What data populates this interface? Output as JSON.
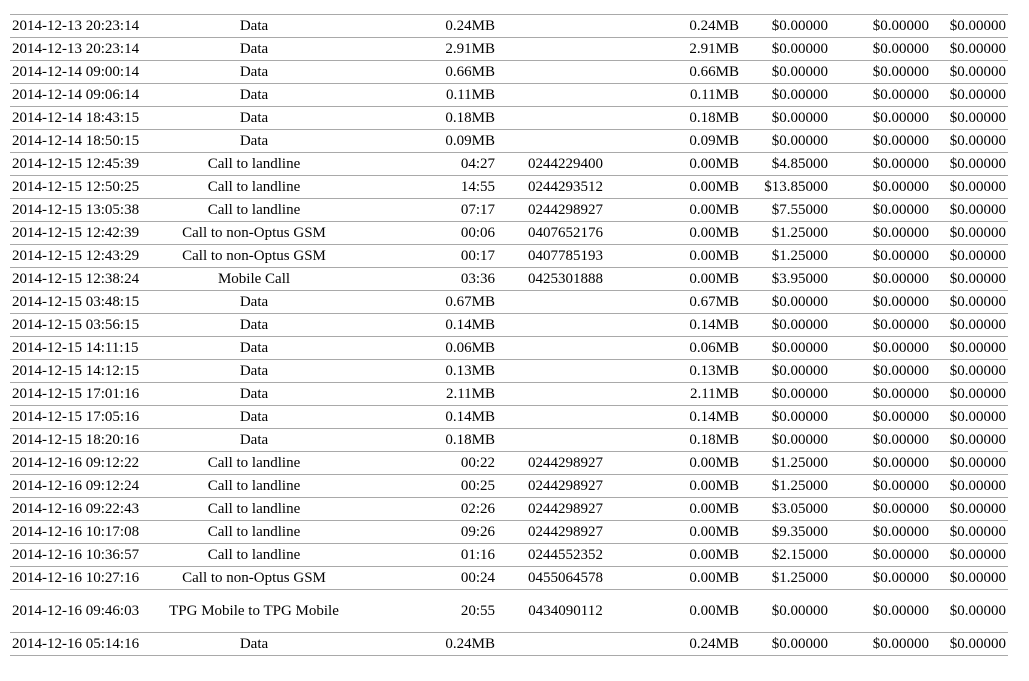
{
  "rows": [
    {
      "date": "2014-12-13 20:23:14",
      "type": "Data",
      "amount": "0.24MB",
      "number": "",
      "usage": "0.24MB",
      "cost": "$0.00000",
      "included": "$0.00000",
      "extra": "$0.00000"
    },
    {
      "date": "2014-12-13 20:23:14",
      "type": "Data",
      "amount": "2.91MB",
      "number": "",
      "usage": "2.91MB",
      "cost": "$0.00000",
      "included": "$0.00000",
      "extra": "$0.00000"
    },
    {
      "date": "2014-12-14 09:00:14",
      "type": "Data",
      "amount": "0.66MB",
      "number": "",
      "usage": "0.66MB",
      "cost": "$0.00000",
      "included": "$0.00000",
      "extra": "$0.00000"
    },
    {
      "date": "2014-12-14 09:06:14",
      "type": "Data",
      "amount": "0.11MB",
      "number": "",
      "usage": "0.11MB",
      "cost": "$0.00000",
      "included": "$0.00000",
      "extra": "$0.00000"
    },
    {
      "date": "2014-12-14 18:43:15",
      "type": "Data",
      "amount": "0.18MB",
      "number": "",
      "usage": "0.18MB",
      "cost": "$0.00000",
      "included": "$0.00000",
      "extra": "$0.00000"
    },
    {
      "date": "2014-12-14 18:50:15",
      "type": "Data",
      "amount": "0.09MB",
      "number": "",
      "usage": "0.09MB",
      "cost": "$0.00000",
      "included": "$0.00000",
      "extra": "$0.00000"
    },
    {
      "date": "2014-12-15 12:45:39",
      "type": "Call to landline",
      "amount": "04:27",
      "number": "0244229400",
      "usage": "0.00MB",
      "cost": "$4.85000",
      "included": "$0.00000",
      "extra": "$0.00000"
    },
    {
      "date": "2014-12-15 12:50:25",
      "type": "Call to landline",
      "amount": "14:55",
      "number": "0244293512",
      "usage": "0.00MB",
      "cost": "$13.85000",
      "included": "$0.00000",
      "extra": "$0.00000"
    },
    {
      "date": "2014-12-15 13:05:38",
      "type": "Call to landline",
      "amount": "07:17",
      "number": "0244298927",
      "usage": "0.00MB",
      "cost": "$7.55000",
      "included": "$0.00000",
      "extra": "$0.00000"
    },
    {
      "date": "2014-12-15 12:42:39",
      "type": "Call to non-Optus GSM",
      "amount": "00:06",
      "number": "0407652176",
      "usage": "0.00MB",
      "cost": "$1.25000",
      "included": "$0.00000",
      "extra": "$0.00000"
    },
    {
      "date": "2014-12-15 12:43:29",
      "type": "Call to non-Optus GSM",
      "amount": "00:17",
      "number": "0407785193",
      "usage": "0.00MB",
      "cost": "$1.25000",
      "included": "$0.00000",
      "extra": "$0.00000"
    },
    {
      "date": "2014-12-15 12:38:24",
      "type": "Mobile Call",
      "amount": "03:36",
      "number": "0425301888",
      "usage": "0.00MB",
      "cost": "$3.95000",
      "included": "$0.00000",
      "extra": "$0.00000"
    },
    {
      "date": "2014-12-15 03:48:15",
      "type": "Data",
      "amount": "0.67MB",
      "number": "",
      "usage": "0.67MB",
      "cost": "$0.00000",
      "included": "$0.00000",
      "extra": "$0.00000"
    },
    {
      "date": "2014-12-15 03:56:15",
      "type": "Data",
      "amount": "0.14MB",
      "number": "",
      "usage": "0.14MB",
      "cost": "$0.00000",
      "included": "$0.00000",
      "extra": "$0.00000"
    },
    {
      "date": "2014-12-15 14:11:15",
      "type": "Data",
      "amount": "0.06MB",
      "number": "",
      "usage": "0.06MB",
      "cost": "$0.00000",
      "included": "$0.00000",
      "extra": "$0.00000"
    },
    {
      "date": "2014-12-15 14:12:15",
      "type": "Data",
      "amount": "0.13MB",
      "number": "",
      "usage": "0.13MB",
      "cost": "$0.00000",
      "included": "$0.00000",
      "extra": "$0.00000"
    },
    {
      "date": "2014-12-15 17:01:16",
      "type": "Data",
      "amount": "2.11MB",
      "number": "",
      "usage": "2.11MB",
      "cost": "$0.00000",
      "included": "$0.00000",
      "extra": "$0.00000"
    },
    {
      "date": "2014-12-15 17:05:16",
      "type": "Data",
      "amount": "0.14MB",
      "number": "",
      "usage": "0.14MB",
      "cost": "$0.00000",
      "included": "$0.00000",
      "extra": "$0.00000"
    },
    {
      "date": "2014-12-15 18:20:16",
      "type": "Data",
      "amount": "0.18MB",
      "number": "",
      "usage": "0.18MB",
      "cost": "$0.00000",
      "included": "$0.00000",
      "extra": "$0.00000"
    },
    {
      "date": "2014-12-16 09:12:22",
      "type": "Call to landline",
      "amount": "00:22",
      "number": "0244298927",
      "usage": "0.00MB",
      "cost": "$1.25000",
      "included": "$0.00000",
      "extra": "$0.00000"
    },
    {
      "date": "2014-12-16 09:12:24",
      "type": "Call to landline",
      "amount": "00:25",
      "number": "0244298927",
      "usage": "0.00MB",
      "cost": "$1.25000",
      "included": "$0.00000",
      "extra": "$0.00000"
    },
    {
      "date": "2014-12-16 09:22:43",
      "type": "Call to landline",
      "amount": "02:26",
      "number": "0244298927",
      "usage": "0.00MB",
      "cost": "$3.05000",
      "included": "$0.00000",
      "extra": "$0.00000"
    },
    {
      "date": "2014-12-16 10:17:08",
      "type": "Call to landline",
      "amount": "09:26",
      "number": "0244298927",
      "usage": "0.00MB",
      "cost": "$9.35000",
      "included": "$0.00000",
      "extra": "$0.00000"
    },
    {
      "date": "2014-12-16 10:36:57",
      "type": "Call to landline",
      "amount": "01:16",
      "number": "0244552352",
      "usage": "0.00MB",
      "cost": "$2.15000",
      "included": "$0.00000",
      "extra": "$0.00000"
    },
    {
      "date": "2014-12-16 10:27:16",
      "type": "Call to non-Optus GSM",
      "amount": "00:24",
      "number": "0455064578",
      "usage": "0.00MB",
      "cost": "$1.25000",
      "included": "$0.00000",
      "extra": "$0.00000"
    },
    {
      "date": "2014-12-16 09:46:03",
      "type": "TPG Mobile to TPG Mobile",
      "amount": "20:55",
      "number": "0434090112",
      "usage": "0.00MB",
      "cost": "$0.00000",
      "included": "$0.00000",
      "extra": "$0.00000"
    },
    {
      "date": "2014-12-16 05:14:16",
      "type": "Data",
      "amount": "0.24MB",
      "number": "",
      "usage": "0.24MB",
      "cost": "$0.00000",
      "included": "$0.00000",
      "extra": "$0.00000"
    }
  ]
}
